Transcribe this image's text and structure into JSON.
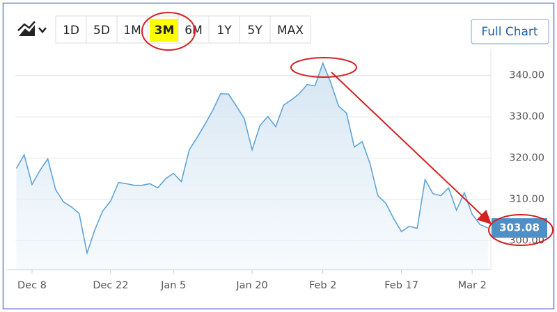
{
  "chart_data": {
    "type": "line",
    "categories": [
      null,
      null,
      "Dec 8",
      null,
      null,
      null,
      null,
      null,
      null,
      null,
      null,
      null,
      "Dec 22",
      null,
      null,
      null,
      null,
      null,
      null,
      null,
      "Jan 5",
      null,
      null,
      null,
      null,
      null,
      null,
      null,
      null,
      null,
      "Jan 20",
      null,
      null,
      null,
      null,
      null,
      null,
      null,
      null,
      "Feb 2",
      null,
      null,
      null,
      null,
      null,
      null,
      null,
      null,
      null,
      "Feb 17",
      null,
      null,
      null,
      null,
      null,
      null,
      null,
      null,
      "Mar 2",
      null,
      null
    ],
    "values": [
      317.5,
      320.8,
      313.6,
      317,
      319.8,
      312.4,
      309.4,
      308.2,
      306.6,
      297,
      302.7,
      307.2,
      309.6,
      314.1,
      313.8,
      313.4,
      313.4,
      313.8,
      312.8,
      315,
      316.3,
      314.3,
      322,
      325,
      328.2,
      331.6,
      335.6,
      335.5,
      332.6,
      329.6,
      322,
      327.9,
      330.1,
      327.6,
      332.8,
      334.1,
      335.6,
      337.8,
      337.5,
      343,
      338.3,
      332.6,
      330.9,
      322.7,
      324,
      318.7,
      310.9,
      309.1,
      305.4,
      302.2,
      303.5,
      303,
      314.8,
      311.4,
      310.9,
      312.8,
      307.4,
      311.6,
      306.4,
      303.9,
      303.08
    ],
    "color": "#5fa4d8",
    "ylim": [
      293,
      346.5
    ],
    "yticks": [
      {
        "value": 300,
        "label": "300.00"
      },
      {
        "value": 310,
        "label": "310.00"
      },
      {
        "value": 320,
        "label": "320.00"
      },
      {
        "value": 330,
        "label": "330.00"
      },
      {
        "value": 340,
        "label": "340.00"
      }
    ],
    "grid": true
  },
  "controls": {
    "ranges": [
      "1D",
      "5D",
      "1M",
      "3M",
      "6M",
      "1Y",
      "5Y",
      "MAX"
    ],
    "selected_range": 3,
    "full_chart": "Full Chart"
  }
}
